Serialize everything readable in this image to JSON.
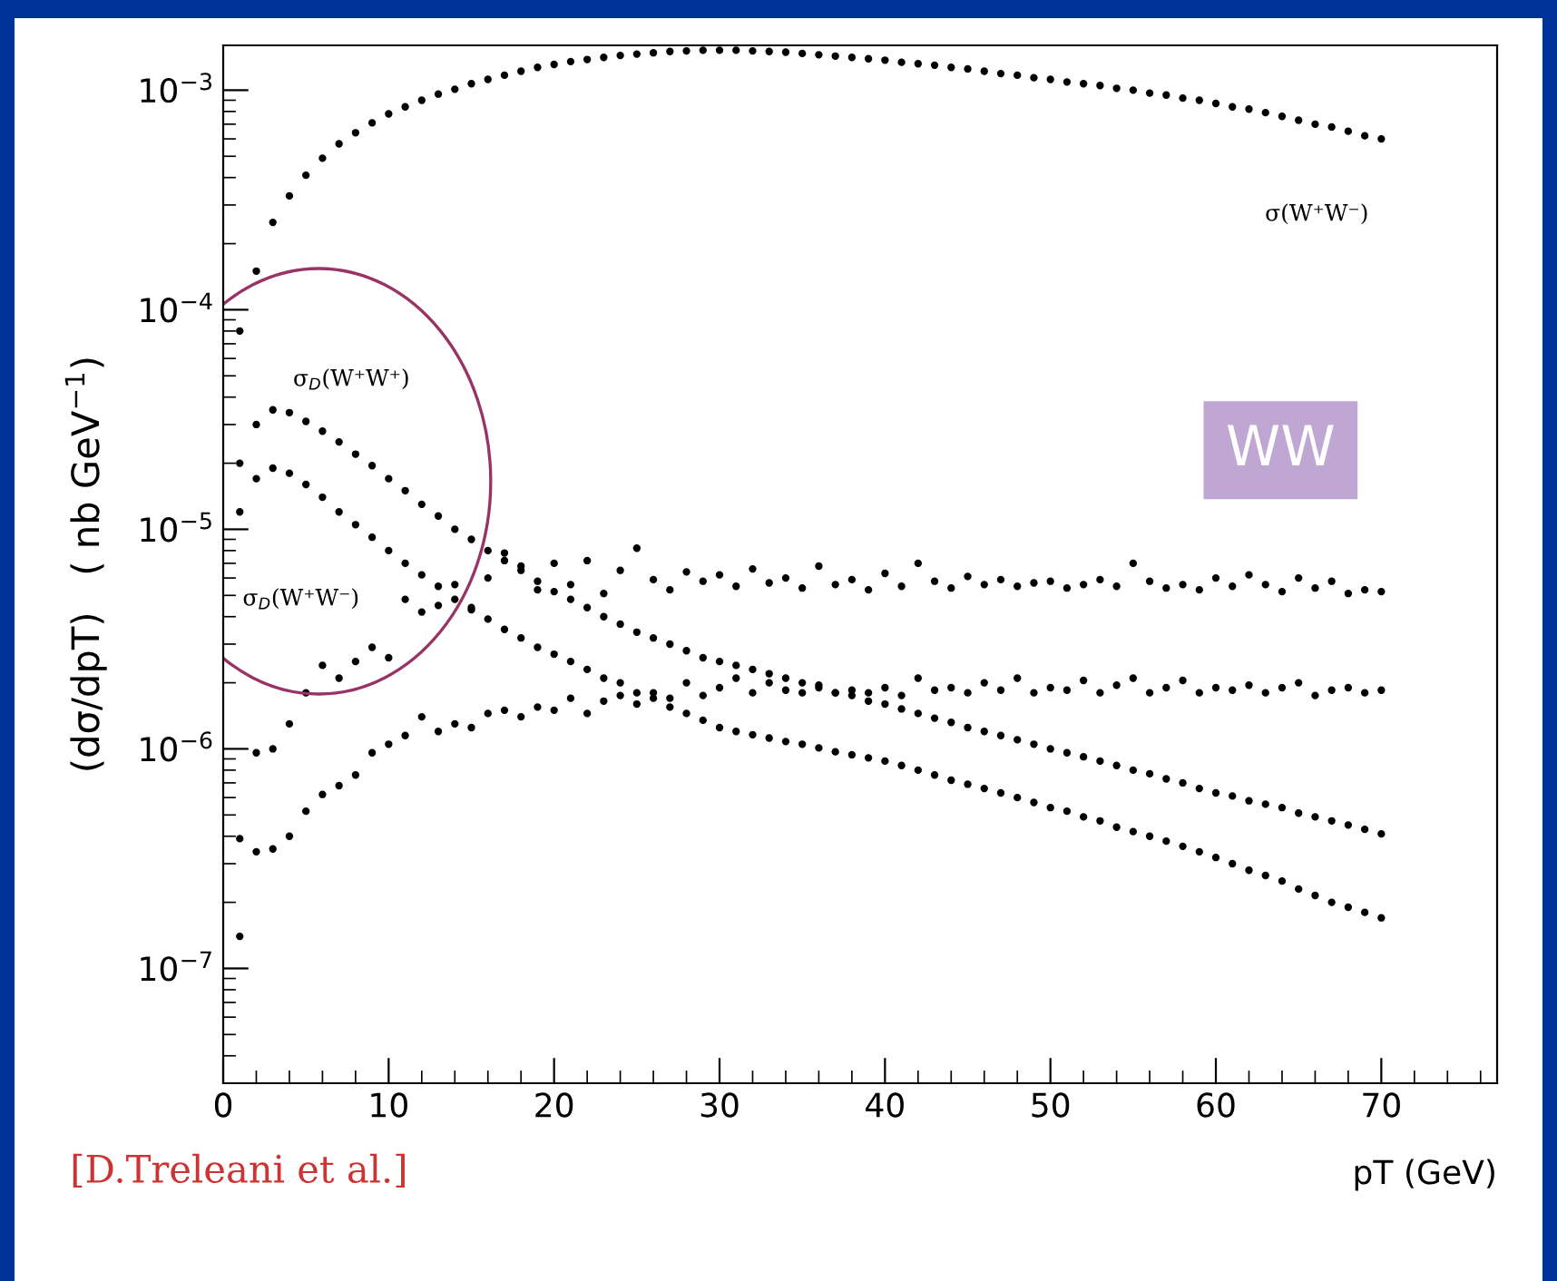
{
  "chart_data": {
    "type": "scatter",
    "xlabel": "pT (GeV)",
    "ylabel": "(dσ/dpT)   ( nb GeV$^{−1}$)",
    "x": [
      1,
      2,
      3,
      4,
      5,
      6,
      7,
      8,
      9,
      10,
      11,
      12,
      13,
      14,
      15,
      16,
      17,
      18,
      19,
      20,
      21,
      22,
      23,
      24,
      25,
      26,
      27,
      28,
      29,
      30,
      31,
      32,
      33,
      34,
      35,
      36,
      37,
      38,
      39,
      40,
      41,
      42,
      43,
      44,
      45,
      46,
      47,
      48,
      49,
      50,
      51,
      52,
      53,
      54,
      55,
      56,
      57,
      58,
      59,
      60,
      61,
      62,
      63,
      64,
      65,
      66,
      67,
      68,
      69,
      70
    ],
    "series": [
      {
        "name": "σ(W⁺W⁻)",
        "color": "#000000",
        "values": [
          8e-05,
          0.00015,
          0.00025,
          0.00033,
          0.00041,
          0.00049,
          0.00057,
          0.00064,
          0.00071,
          0.00078,
          0.00084,
          0.0009,
          0.00096,
          0.00101,
          0.00107,
          0.00112,
          0.00117,
          0.00122,
          0.00127,
          0.00131,
          0.00135,
          0.00138,
          0.00141,
          0.00144,
          0.00146,
          0.00148,
          0.0015,
          0.00151,
          0.00152,
          0.00152,
          0.00152,
          0.00151,
          0.0015,
          0.00149,
          0.00147,
          0.00145,
          0.00143,
          0.00141,
          0.00139,
          0.00137,
          0.00134,
          0.00132,
          0.0013,
          0.00127,
          0.00125,
          0.00122,
          0.00119,
          0.00117,
          0.00114,
          0.00112,
          0.00109,
          0.00107,
          0.00105,
          0.00102,
          0.001,
          0.00097,
          0.00095,
          0.00092,
          0.0009,
          0.00087,
          0.00084,
          0.00082,
          0.00079,
          0.00076,
          0.00073,
          0.0007,
          0.00068,
          0.00065,
          0.00062,
          0.0006
        ]
      },
      {
        "name": "σ$_{D}$(W⁺W⁺)",
        "color": "#000000",
        "values": [
          2e-05,
          3e-05,
          3.5e-05,
          3.4e-05,
          3.1e-05,
          2.8e-05,
          2.5e-05,
          2.2e-05,
          1.95e-05,
          1.7e-05,
          1.5e-05,
          1.3e-05,
          1.15e-05,
          1e-05,
          9e-06,
          8e-06,
          7.2e-06,
          6.5e-06,
          5.8e-06,
          5.2e-06,
          4.8e-06,
          4.4e-06,
          4e-06,
          3.7e-06,
          3.4e-06,
          3.2e-06,
          3e-06,
          2.8e-06,
          2.6e-06,
          2.5e-06,
          2.4e-06,
          2.3e-06,
          2.2e-06,
          2.1e-06,
          2e-06,
          1.9e-06,
          1.8e-06,
          1.75e-06,
          1.65e-06,
          1.6e-06,
          1.52e-06,
          1.45e-06,
          1.38e-06,
          1.32e-06,
          1.25e-06,
          1.2e-06,
          1.15e-06,
          1.1e-06,
          1.05e-06,
          1e-06,
          9.6e-07,
          9.2e-07,
          8.8e-07,
          8.4e-07,
          8e-07,
          7.7e-07,
          7.3e-07,
          7e-07,
          6.6e-07,
          6.3e-07,
          6.1e-07,
          5.8e-07,
          5.6e-07,
          5.4e-07,
          5.1e-07,
          4.9e-07,
          4.7e-07,
          4.5e-07,
          4.3e-07,
          4.1e-07
        ]
      },
      {
        "name": "σ$_{D}$(W⁺W⁻)",
        "color": "#000000",
        "values": [
          1.2e-05,
          1.7e-05,
          1.9e-05,
          1.8e-05,
          1.6e-05,
          1.4e-05,
          1.2e-05,
          1.05e-05,
          9.2e-06,
          8e-06,
          7e-06,
          6.2e-06,
          5.5e-06,
          4.8e-06,
          4.3e-06,
          3.9e-06,
          3.5e-06,
          3.2e-06,
          2.9e-06,
          2.7e-06,
          2.5e-06,
          2.3e-06,
          2.1e-06,
          2e-06,
          1.8e-06,
          1.7e-06,
          1.55e-06,
          1.45e-06,
          1.35e-06,
          1.25e-06,
          1.2e-06,
          1.16e-06,
          1.12e-06,
          1.08e-06,
          1.05e-06,
          1.01e-06,
          9.7e-07,
          9.4e-07,
          9.1e-07,
          8.8e-07,
          8.4e-07,
          8e-07,
          7.6e-07,
          7.2e-07,
          6.9e-07,
          6.6e-07,
          6.3e-07,
          6e-07,
          5.7e-07,
          5.4e-07,
          5.2e-07,
          4.9e-07,
          4.7e-07,
          4.4e-07,
          4.2e-07,
          4e-07,
          3.8e-07,
          3.6e-07,
          3.4e-07,
          3.2e-07,
          3e-07,
          2.8e-07,
          2.65e-07,
          2.5e-07,
          2.3e-07,
          2.15e-07,
          2e-07,
          1.9e-07,
          1.8e-07,
          1.7e-07
        ]
      },
      {
        "color": "#000000",
        "values": [
          1.4e-07,
          9.6e-07,
          1e-06,
          1.3e-06,
          1.8e-06,
          2.4e-06,
          2.1e-06,
          2.5e-06,
          2.9e-06,
          2.6e-06,
          4.8e-06,
          4.2e-06,
          4.5e-06,
          5.6e-06,
          4.4e-06,
          6e-06,
          7.8e-06,
          6.8e-06,
          5.3e-06,
          7e-06,
          5.6e-06,
          7.2e-06,
          5.1e-06,
          6.5e-06,
          8.2e-06,
          5.9e-06,
          5.3e-06,
          6.4e-06,
          5.8e-06,
          6.2e-06,
          5.5e-06,
          6.6e-06,
          5.7e-06,
          6e-06,
          5.4e-06,
          6.8e-06,
          5.6e-06,
          5.9e-06,
          5.3e-06,
          6.3e-06,
          5.5e-06,
          7e-06,
          5.8e-06,
          5.4e-06,
          6.1e-06,
          5.6e-06,
          5.9e-06,
          5.5e-06,
          5.7e-06,
          5.8e-06,
          5.4e-06,
          5.6e-06,
          5.9e-06,
          5.5e-06,
          7e-06,
          5.8e-06,
          5.4e-06,
          5.6e-06,
          5.3e-06,
          6e-06,
          5.5e-06,
          6.2e-06,
          5.6e-06,
          5.2e-06,
          6e-06,
          5.4e-06,
          5.8e-06,
          5.1e-06,
          5.3e-06,
          5.2e-06
        ]
      },
      {
        "color": "#000000",
        "values": [
          3.9e-07,
          3.4e-07,
          3.5e-07,
          4e-07,
          5.2e-07,
          6.2e-07,
          6.8e-07,
          7.6e-07,
          9.6e-07,
          1.05e-06,
          1.15e-06,
          1.4e-06,
          1.2e-06,
          1.3e-06,
          1.25e-06,
          1.45e-06,
          1.5e-06,
          1.4e-06,
          1.55e-06,
          1.5e-06,
          1.7e-06,
          1.45e-06,
          1.65e-06,
          1.75e-06,
          1.6e-06,
          1.8e-06,
          1.7e-06,
          2e-06,
          1.75e-06,
          1.9e-06,
          2.1e-06,
          1.8e-06,
          2e-06,
          1.85e-06,
          1.8e-06,
          1.95e-06,
          1.8e-06,
          1.85e-06,
          1.8e-06,
          1.9e-06,
          1.75e-06,
          2.1e-06,
          1.85e-06,
          1.9e-06,
          1.8e-06,
          2e-06,
          1.85e-06,
          2.1e-06,
          1.8e-06,
          1.9e-06,
          1.85e-06,
          2.05e-06,
          1.8e-06,
          1.95e-06,
          2.1e-06,
          1.8e-06,
          1.9e-06,
          2.05e-06,
          1.8e-06,
          1.9e-06,
          1.85e-06,
          1.95e-06,
          1.8e-06,
          1.9e-06,
          2e-06,
          1.75e-06,
          1.85e-06,
          1.9e-06,
          1.8e-06,
          1.85e-06
        ]
      }
    ],
    "log": "y",
    "xlim": [
      0,
      77
    ],
    "xticks": [
      0,
      10,
      20,
      30,
      40,
      50,
      60,
      70
    ],
    "ylim": [
      3e-08,
      0.0016
    ],
    "yticks": [
      {
        "value": 1e-07,
        "label": "10$^{−7}$"
      },
      {
        "value": 1e-06,
        "label": "10$^{−6}$"
      },
      {
        "value": 1e-05,
        "label": "10$^{−5}$"
      },
      {
        "value": 0.0001,
        "label": "10$^{−4}$"
      },
      {
        "value": 0.001,
        "label": "10$^{−3}$"
      }
    ],
    "marker": "circle",
    "grid": false,
    "legend": false,
    "annotations": [
      "[D.Treleani et al.]",
      "WW"
    ]
  }
}
